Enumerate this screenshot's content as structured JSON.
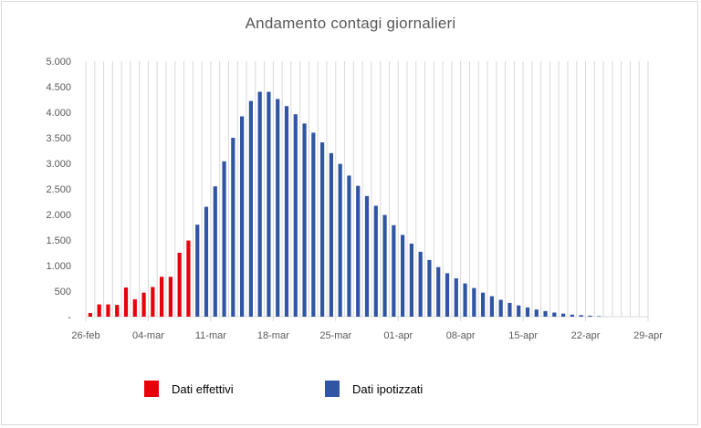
{
  "chart_data": {
    "type": "bar",
    "title": "Andamento contagi giornalieri",
    "xlabel": "",
    "ylabel": "",
    "ylim": [
      0,
      5000
    ],
    "y_ticks": [
      "-",
      "500",
      "1.000",
      "1.500",
      "2.000",
      "2.500",
      "3.000",
      "3.500",
      "4.000",
      "4.500",
      "5.000"
    ],
    "x_ticks": [
      "26-feb",
      "04-mar",
      "11-mar",
      "18-mar",
      "25-mar",
      "01-apr",
      "08-apr",
      "15-apr",
      "22-apr",
      "29-apr"
    ],
    "grid": "vertical",
    "legend_placement": "bottom",
    "colors": {
      "effettivi": "#e8000b",
      "ipotizzati": "#2f55a4",
      "grid": "#d9d9d9",
      "text": "#595959"
    },
    "series": [
      {
        "name": "Dati effettivi",
        "color": "#e8000b",
        "start_date": "26-feb",
        "values": [
          70,
          240,
          240,
          230,
          570,
          340,
          470,
          580,
          780,
          780,
          1250,
          1490
        ]
      },
      {
        "name": "Dati ipotizzati",
        "color": "#2f55a4",
        "start_date": "09-mar",
        "values": [
          1800,
          2150,
          2550,
          3040,
          3500,
          3920,
          4220,
          4400,
          4400,
          4260,
          4120,
          3960,
          3780,
          3600,
          3410,
          3200,
          2990,
          2760,
          2560,
          2360,
          2170,
          1990,
          1790,
          1600,
          1430,
          1270,
          1110,
          970,
          850,
          750,
          650,
          560,
          470,
          400,
          330,
          270,
          220,
          180,
          140,
          110,
          80,
          60,
          40,
          30,
          20,
          10
        ]
      }
    ]
  }
}
